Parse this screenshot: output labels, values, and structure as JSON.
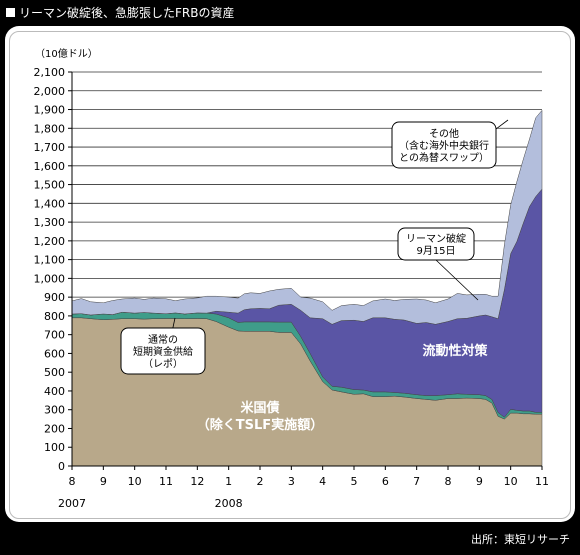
{
  "header": {
    "title": "リーマン破綻後、急膨張したFRBの資産"
  },
  "source": "出所：東短リサーチ",
  "chart_data": {
    "type": "area",
    "title": "リーマン破綻後、急膨張したFRBの資産",
    "unit_label": "（10億ドル）",
    "ylim": [
      0,
      2100
    ],
    "yticks": [
      "0",
      "100",
      "200",
      "300",
      "400",
      "500",
      "600",
      "700",
      "800",
      "900",
      "1,000",
      "1,100",
      "1,200",
      "1,300",
      "1,400",
      "1,500",
      "1,600",
      "1,700",
      "1,800",
      "1,900",
      "2,000",
      "2,100"
    ],
    "x_tick_labels": [
      "8",
      "9",
      "10",
      "11",
      "12",
      "1",
      "2",
      "3",
      "4",
      "5",
      "6",
      "7",
      "8",
      "9",
      "10",
      "11"
    ],
    "year_labels": [
      {
        "text": "2007",
        "at": "8"
      },
      {
        "text": "2008",
        "at": "1"
      }
    ],
    "grid": true,
    "x": [
      0,
      0.3,
      0.6,
      1,
      1.3,
      1.6,
      2,
      2.3,
      2.6,
      3,
      3.3,
      3.6,
      4,
      4.3,
      4.6,
      5,
      5.3,
      5.5,
      5.7,
      6,
      6.3,
      6.6,
      7,
      7.3,
      7.6,
      8,
      8.3,
      8.6,
      9,
      9.3,
      9.6,
      10,
      10.3,
      10.6,
      11,
      11.3,
      11.6,
      12,
      12.3,
      12.6,
      13,
      13.2,
      13.4,
      13.6,
      13.8,
      14,
      14.2,
      14.4,
      14.6,
      14.8,
      15
    ],
    "series": [
      {
        "name": "米国債（除くTSLF実施額）",
        "color": "#b8a88a",
        "values": [
          790,
          790,
          785,
          780,
          782,
          785,
          785,
          783,
          785,
          786,
          786,
          785,
          786,
          785,
          770,
          740,
          720,
          718,
          718,
          718,
          718,
          712,
          712,
          650,
          560,
          450,
          405,
          395,
          382,
          385,
          370,
          370,
          372,
          368,
          360,
          355,
          350,
          360,
          360,
          362,
          360,
          355,
          335,
          265,
          250,
          282,
          282,
          278,
          278,
          276,
          276
        ]
      },
      {
        "name": "通常の短期資金供給（レポ）",
        "color": "#3f9d8a",
        "values": [
          20,
          22,
          20,
          30,
          25,
          35,
          30,
          35,
          30,
          25,
          30,
          25,
          30,
          30,
          40,
          50,
          45,
          50,
          50,
          50,
          50,
          55,
          55,
          40,
          40,
          25,
          20,
          25,
          25,
          20,
          25,
          25,
          20,
          20,
          20,
          20,
          25,
          20,
          25,
          20,
          20,
          20,
          20,
          20,
          10,
          20,
          15,
          15,
          15,
          10,
          10
        ]
      },
      {
        "name": "流動性対策",
        "color": "#5a55a5",
        "values": [
          0,
          0,
          0,
          0,
          0,
          0,
          0,
          0,
          0,
          0,
          0,
          0,
          0,
          0,
          15,
          30,
          50,
          65,
          70,
          72,
          70,
          90,
          95,
          140,
          190,
          310,
          330,
          355,
          370,
          365,
          395,
          395,
          390,
          390,
          380,
          390,
          380,
          390,
          400,
          405,
          420,
          430,
          440,
          500,
          680,
          830,
          900,
          1000,
          1090,
          1150,
          1190
        ]
      },
      {
        "name": "その他（含む海外中央銀行との為替スワップ）",
        "color": "#b3bedc",
        "values": [
          70,
          80,
          70,
          60,
          75,
          70,
          80,
          70,
          80,
          80,
          65,
          80,
          80,
          90,
          80,
          80,
          80,
          85,
          85,
          80,
          95,
          85,
          85,
          70,
          105,
          90,
          75,
          80,
          85,
          85,
          90,
          100,
          100,
          110,
          130,
          120,
          115,
          120,
          135,
          125,
          115,
          110,
          110,
          120,
          240,
          260,
          320,
          340,
          360,
          420,
          420
        ]
      }
    ],
    "annotations": [
      {
        "text": "通常の\n短期資金供給\n（レポ）",
        "series": "通常の短期資金供給（レポ）"
      },
      {
        "text": "リーマン破綻\n9月15日"
      },
      {
        "text": "その他\n（含む海外中央銀行\nとの為替スワップ）",
        "series": "その他（含む海外中央銀行との為替スワップ）"
      }
    ],
    "area_labels": [
      {
        "text": "流動性対策",
        "series": "流動性対策"
      },
      {
        "text": "米国債\n（除くTSLF実施額）",
        "series": "米国債（除くTSLF実施額）"
      }
    ]
  }
}
